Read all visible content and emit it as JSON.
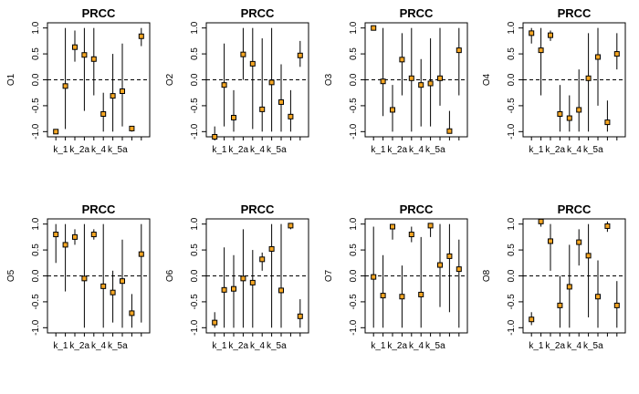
{
  "chart_data": [
    {
      "type": "scatter",
      "title": "PRCC",
      "ylabel": "O1",
      "x_tick_labels": [
        "k_1",
        "k_2a",
        "k_4",
        "k_5a"
      ],
      "ylim": [
        -1,
        1
      ],
      "y_ticks": [
        -1.0,
        -0.5,
        0.0,
        0.5,
        1.0
      ],
      "reference_line": 0,
      "values": [
        -1.0,
        -0.12,
        0.63,
        0.48,
        0.4,
        -0.66,
        -0.31,
        -0.22,
        -0.94,
        0.84
      ],
      "lower": [
        -1.0,
        -0.95,
        0.35,
        -0.6,
        -0.3,
        -1.0,
        -1.0,
        -0.9,
        -1.0,
        0.65
      ],
      "upper": [
        -0.97,
        1.0,
        0.95,
        1.0,
        1.0,
        -0.25,
        0.5,
        0.7,
        -0.9,
        1.0
      ]
    },
    {
      "type": "scatter",
      "title": "PRCC",
      "ylabel": "O2",
      "x_tick_labels": [
        "k_1",
        "k_2a",
        "k_4",
        "k_5a"
      ],
      "ylim": [
        -1,
        1
      ],
      "y_ticks": [
        -1.0,
        -0.5,
        0.0,
        0.5,
        1.0
      ],
      "reference_line": 0,
      "values": [
        -1.1,
        -0.1,
        -0.73,
        0.49,
        0.31,
        -0.57,
        -0.05,
        -0.43,
        -0.71,
        0.47
      ],
      "lower": [
        -1.1,
        -0.9,
        -1.0,
        0.0,
        -0.95,
        -1.0,
        -1.0,
        -1.0,
        -1.0,
        0.25
      ],
      "upper": [
        -0.9,
        0.7,
        -0.2,
        1.0,
        1.0,
        0.8,
        1.0,
        0.3,
        -0.2,
        0.75
      ]
    },
    {
      "type": "scatter",
      "title": "PRCC",
      "ylabel": "O3",
      "x_tick_labels": [
        "k_1",
        "k_2a",
        "k_4",
        "k_5a"
      ],
      "ylim": [
        -1,
        1
      ],
      "y_ticks": [
        -1.0,
        -0.5,
        0.0,
        0.5,
        1.0
      ],
      "reference_line": 0,
      "values": [
        1.0,
        -0.03,
        -0.58,
        0.39,
        0.03,
        -0.1,
        -0.07,
        0.03,
        -0.99,
        0.57
      ],
      "lower": [
        0.95,
        -0.7,
        -1.0,
        -0.3,
        -1.0,
        -0.9,
        -0.9,
        -0.5,
        -1.0,
        -0.3
      ],
      "upper": [
        1.05,
        1.0,
        -0.1,
        0.9,
        1.0,
        0.4,
        0.8,
        1.0,
        -0.6,
        1.0
      ]
    },
    {
      "type": "scatter",
      "title": "PRCC",
      "ylabel": "O4",
      "x_tick_labels": [
        "k_1",
        "k_2a",
        "k_4",
        "k_5a"
      ],
      "ylim": [
        -1,
        1
      ],
      "y_ticks": [
        -1.0,
        -0.5,
        0.0,
        0.5,
        1.0
      ],
      "reference_line": 0,
      "values": [
        0.9,
        0.57,
        0.86,
        -0.66,
        -0.74,
        -0.58,
        0.03,
        0.44,
        -0.82,
        0.5
      ],
      "lower": [
        0.7,
        -0.3,
        0.75,
        -1.0,
        -1.0,
        -1.0,
        -1.0,
        -0.5,
        -1.0,
        0.2
      ],
      "upper": [
        1.0,
        1.0,
        0.95,
        -0.1,
        -0.3,
        0.2,
        0.9,
        1.0,
        -0.4,
        0.9
      ]
    },
    {
      "type": "scatter",
      "title": "PRCC",
      "ylabel": "O5",
      "x_tick_labels": [
        "k_1",
        "k_2a",
        "k_4",
        "k_5a"
      ],
      "ylim": [
        -1,
        1
      ],
      "y_ticks": [
        -1.0,
        -0.5,
        0.0,
        0.5,
        1.0
      ],
      "reference_line": 0,
      "values": [
        0.8,
        0.6,
        0.75,
        -0.05,
        0.8,
        -0.2,
        -0.32,
        -0.1,
        -0.72,
        0.42
      ],
      "lower": [
        0.25,
        -0.3,
        0.6,
        -1.0,
        0.7,
        -1.0,
        -0.9,
        -1.0,
        -1.0,
        -0.9
      ],
      "upper": [
        1.0,
        1.0,
        0.9,
        1.0,
        0.9,
        1.0,
        0.1,
        0.7,
        -0.35,
        1.0
      ]
    },
    {
      "type": "scatter",
      "title": "PRCC",
      "ylabel": "O6",
      "x_tick_labels": [
        "k_1",
        "k_2a",
        "k_4",
        "k_5a"
      ],
      "ylim": [
        -1,
        1
      ],
      "y_ticks": [
        -1.0,
        -0.5,
        0.0,
        0.5,
        1.0
      ],
      "reference_line": 0,
      "values": [
        -0.9,
        -0.27,
        -0.25,
        -0.05,
        -0.13,
        0.32,
        0.52,
        -0.28,
        0.97,
        -0.78
      ],
      "lower": [
        -1.0,
        -1.0,
        -1.0,
        -1.0,
        -1.0,
        0.1,
        -1.0,
        -1.0,
        0.9,
        -1.0
      ],
      "upper": [
        -0.7,
        0.55,
        0.4,
        0.9,
        0.5,
        0.45,
        1.0,
        1.0,
        1.0,
        -0.45
      ]
    },
    {
      "type": "scatter",
      "title": "PRCC",
      "ylabel": "O7",
      "x_tick_labels": [
        "k_1",
        "k_2a",
        "k_4",
        "k_5a"
      ],
      "ylim": [
        -1,
        1
      ],
      "y_ticks": [
        -1.0,
        -0.5,
        0.0,
        0.5,
        1.0
      ],
      "reference_line": 0,
      "values": [
        -0.02,
        -0.38,
        0.95,
        -0.4,
        0.8,
        -0.36,
        0.97,
        0.21,
        0.38,
        0.13
      ],
      "lower": [
        -1.0,
        -1.0,
        0.7,
        -1.0,
        0.65,
        -1.0,
        0.75,
        -0.6,
        -0.7,
        -1.0
      ],
      "upper": [
        0.95,
        0.4,
        1.0,
        0.2,
        0.95,
        0.75,
        1.0,
        1.0,
        1.0,
        0.7
      ]
    },
    {
      "type": "scatter",
      "title": "PRCC",
      "ylabel": "O8",
      "x_tick_labels": [
        "k_1",
        "k_2a",
        "k_4",
        "k_5a"
      ],
      "ylim": [
        -1,
        1
      ],
      "y_ticks": [
        -1.0,
        -0.5,
        0.0,
        0.5,
        1.0
      ],
      "reference_line": 0,
      "values": [
        -0.84,
        1.05,
        0.67,
        -0.57,
        -0.21,
        0.65,
        0.39,
        -0.4,
        0.96,
        -0.57
      ],
      "lower": [
        -0.95,
        0.95,
        0.1,
        -1.0,
        -1.0,
        0.2,
        -0.8,
        -1.0,
        0.85,
        -1.0
      ],
      "upper": [
        -0.7,
        1.1,
        1.0,
        0.0,
        0.6,
        0.9,
        1.0,
        0.3,
        1.05,
        -0.1
      ]
    }
  ],
  "colors": {
    "point_fill": "#f5a623",
    "point_stroke": "#000000",
    "line": "#000000",
    "background": "#ffffff"
  }
}
